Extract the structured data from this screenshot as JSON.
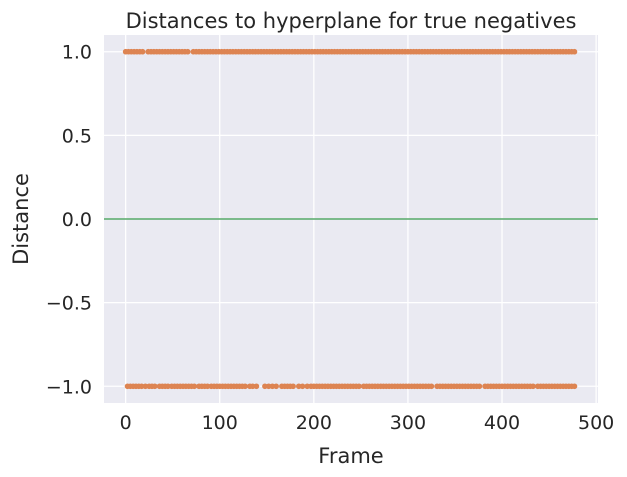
{
  "chart_data": {
    "type": "scatter",
    "title": "Distances to hyperplane for true negatives",
    "xlabel": "Frame",
    "ylabel": "Distance",
    "xlim": [
      -23,
      502
    ],
    "ylim": [
      -1.1,
      1.1
    ],
    "xticks": [
      0,
      100,
      200,
      300,
      400,
      500
    ],
    "xtick_labels": [
      "0",
      "100",
      "200",
      "300",
      "400",
      "500"
    ],
    "yticks": [
      -1.0,
      -0.5,
      0.0,
      0.5,
      1.0
    ],
    "ytick_labels": [
      "−1.0",
      "−0.5",
      "0.0",
      "0.5",
      "1.0"
    ],
    "grid": true,
    "background": "#eaeaf2",
    "series": [
      {
        "type": "scatter",
        "color": "#dd8452",
        "y": 1.0,
        "x": [
          0,
          3,
          6,
          9,
          12,
          15,
          18,
          24,
          27,
          30,
          33,
          36,
          39,
          42,
          45,
          48,
          51,
          54,
          57,
          60,
          63,
          66,
          72,
          75,
          78,
          81,
          84,
          87,
          90,
          93,
          96,
          99,
          102,
          105,
          108,
          111,
          114,
          117,
          120,
          123,
          126,
          129,
          132,
          135,
          138,
          141,
          144,
          147,
          150,
          153,
          156,
          159,
          162,
          165,
          168,
          171,
          174,
          177,
          180,
          183,
          186,
          189,
          192,
          195,
          198,
          201,
          204,
          207,
          210,
          213,
          216,
          219,
          222,
          225,
          228,
          231,
          234,
          237,
          240,
          243,
          246,
          249,
          252,
          255,
          258,
          261,
          264,
          267,
          270,
          273,
          276,
          279,
          282,
          285,
          288,
          291,
          294,
          297,
          300,
          303,
          306,
          309,
          312,
          315,
          318,
          321,
          324,
          327,
          330,
          333,
          336,
          339,
          342,
          345,
          348,
          351,
          354,
          357,
          360,
          363,
          366,
          369,
          372,
          375,
          378,
          381,
          384,
          387,
          390,
          393,
          396,
          399,
          402,
          405,
          408,
          411,
          414,
          417,
          420,
          423,
          426,
          429,
          432,
          435,
          438,
          441,
          444,
          447,
          450,
          453,
          456,
          459,
          462,
          465,
          468,
          471,
          474,
          477
        ]
      },
      {
        "type": "scatter",
        "color": "#dd8452",
        "y": -1.0,
        "x": [
          2,
          5,
          8,
          11,
          14,
          17,
          21,
          25,
          28,
          31,
          36,
          39,
          42,
          45,
          49,
          52,
          55,
          58,
          61,
          64,
          67,
          70,
          73,
          78,
          81,
          84,
          87,
          91,
          94,
          97,
          100,
          103,
          106,
          109,
          112,
          115,
          118,
          121,
          124,
          127,
          132,
          135,
          139,
          148,
          152,
          156,
          160,
          166,
          169,
          172,
          175,
          178,
          184,
          188,
          193,
          197,
          200,
          203,
          206,
          209,
          212,
          215,
          218,
          221,
          224,
          227,
          230,
          233,
          236,
          239,
          242,
          245,
          248,
          253,
          256,
          259,
          262,
          265,
          268,
          271,
          274,
          277,
          280,
          283,
          286,
          289,
          292,
          295,
          298,
          301,
          304,
          307,
          310,
          313,
          316,
          319,
          322,
          325,
          331,
          334,
          337,
          340,
          343,
          346,
          349,
          352,
          355,
          358,
          361,
          364,
          367,
          370,
          373,
          376,
          382,
          385,
          388,
          391,
          394,
          397,
          400,
          403,
          406,
          409,
          412,
          415,
          418,
          421,
          424,
          427,
          430,
          433,
          438,
          441,
          444,
          447,
          450,
          453,
          456,
          459,
          462,
          465,
          468,
          471,
          474,
          477
        ]
      },
      {
        "type": "line",
        "color": "#55a868",
        "x": [
          -23,
          502
        ],
        "y": [
          0.0,
          0.0
        ]
      }
    ]
  }
}
